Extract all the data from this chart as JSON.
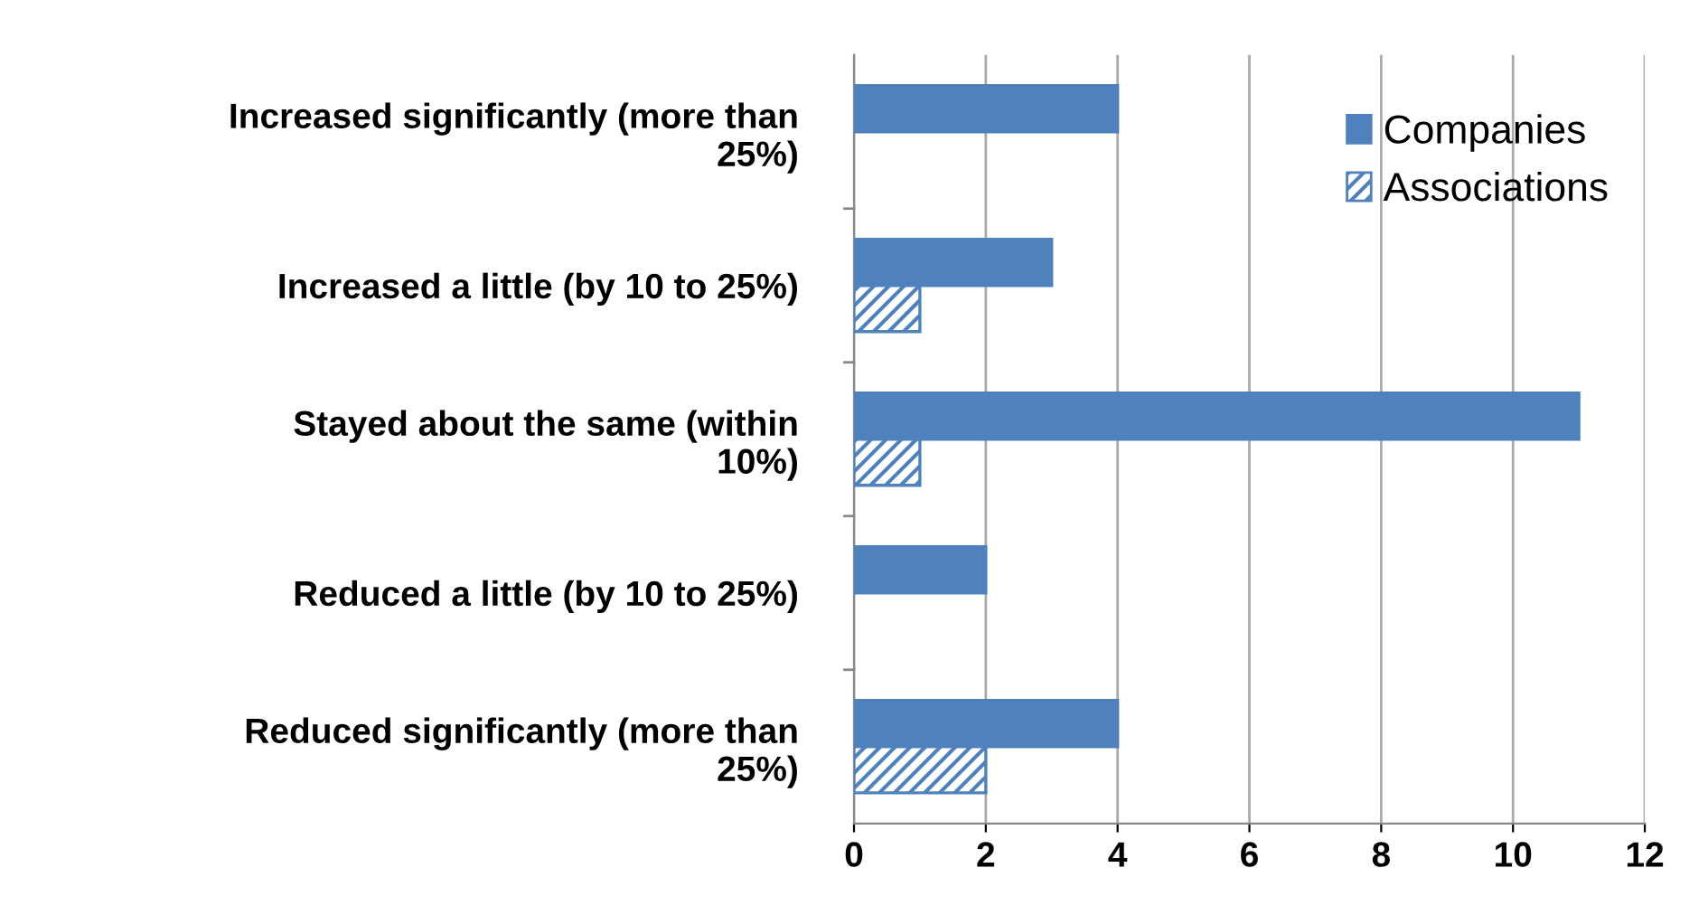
{
  "chart_data": {
    "type": "bar",
    "orientation": "horizontal",
    "categories": [
      "Increased significantly (more than\n25%)",
      "Increased a little (by 10 to 25%)",
      "Stayed about the same (within\n10%)",
      "Reduced a little (by 10 to 25%)",
      "Reduced significantly (more than\n25%)"
    ],
    "series": [
      {
        "name": "Companies",
        "color": "#4f81bd",
        "values": [
          4,
          3,
          11,
          2,
          4
        ]
      },
      {
        "name": "Associations",
        "color": "#4f81bd",
        "values": [
          null,
          1,
          1,
          null,
          2
        ]
      }
    ],
    "xlim": [
      0,
      12
    ],
    "xticks": [
      0,
      2,
      4,
      6,
      8,
      10,
      12
    ],
    "grid": "x",
    "legend": "top right"
  }
}
